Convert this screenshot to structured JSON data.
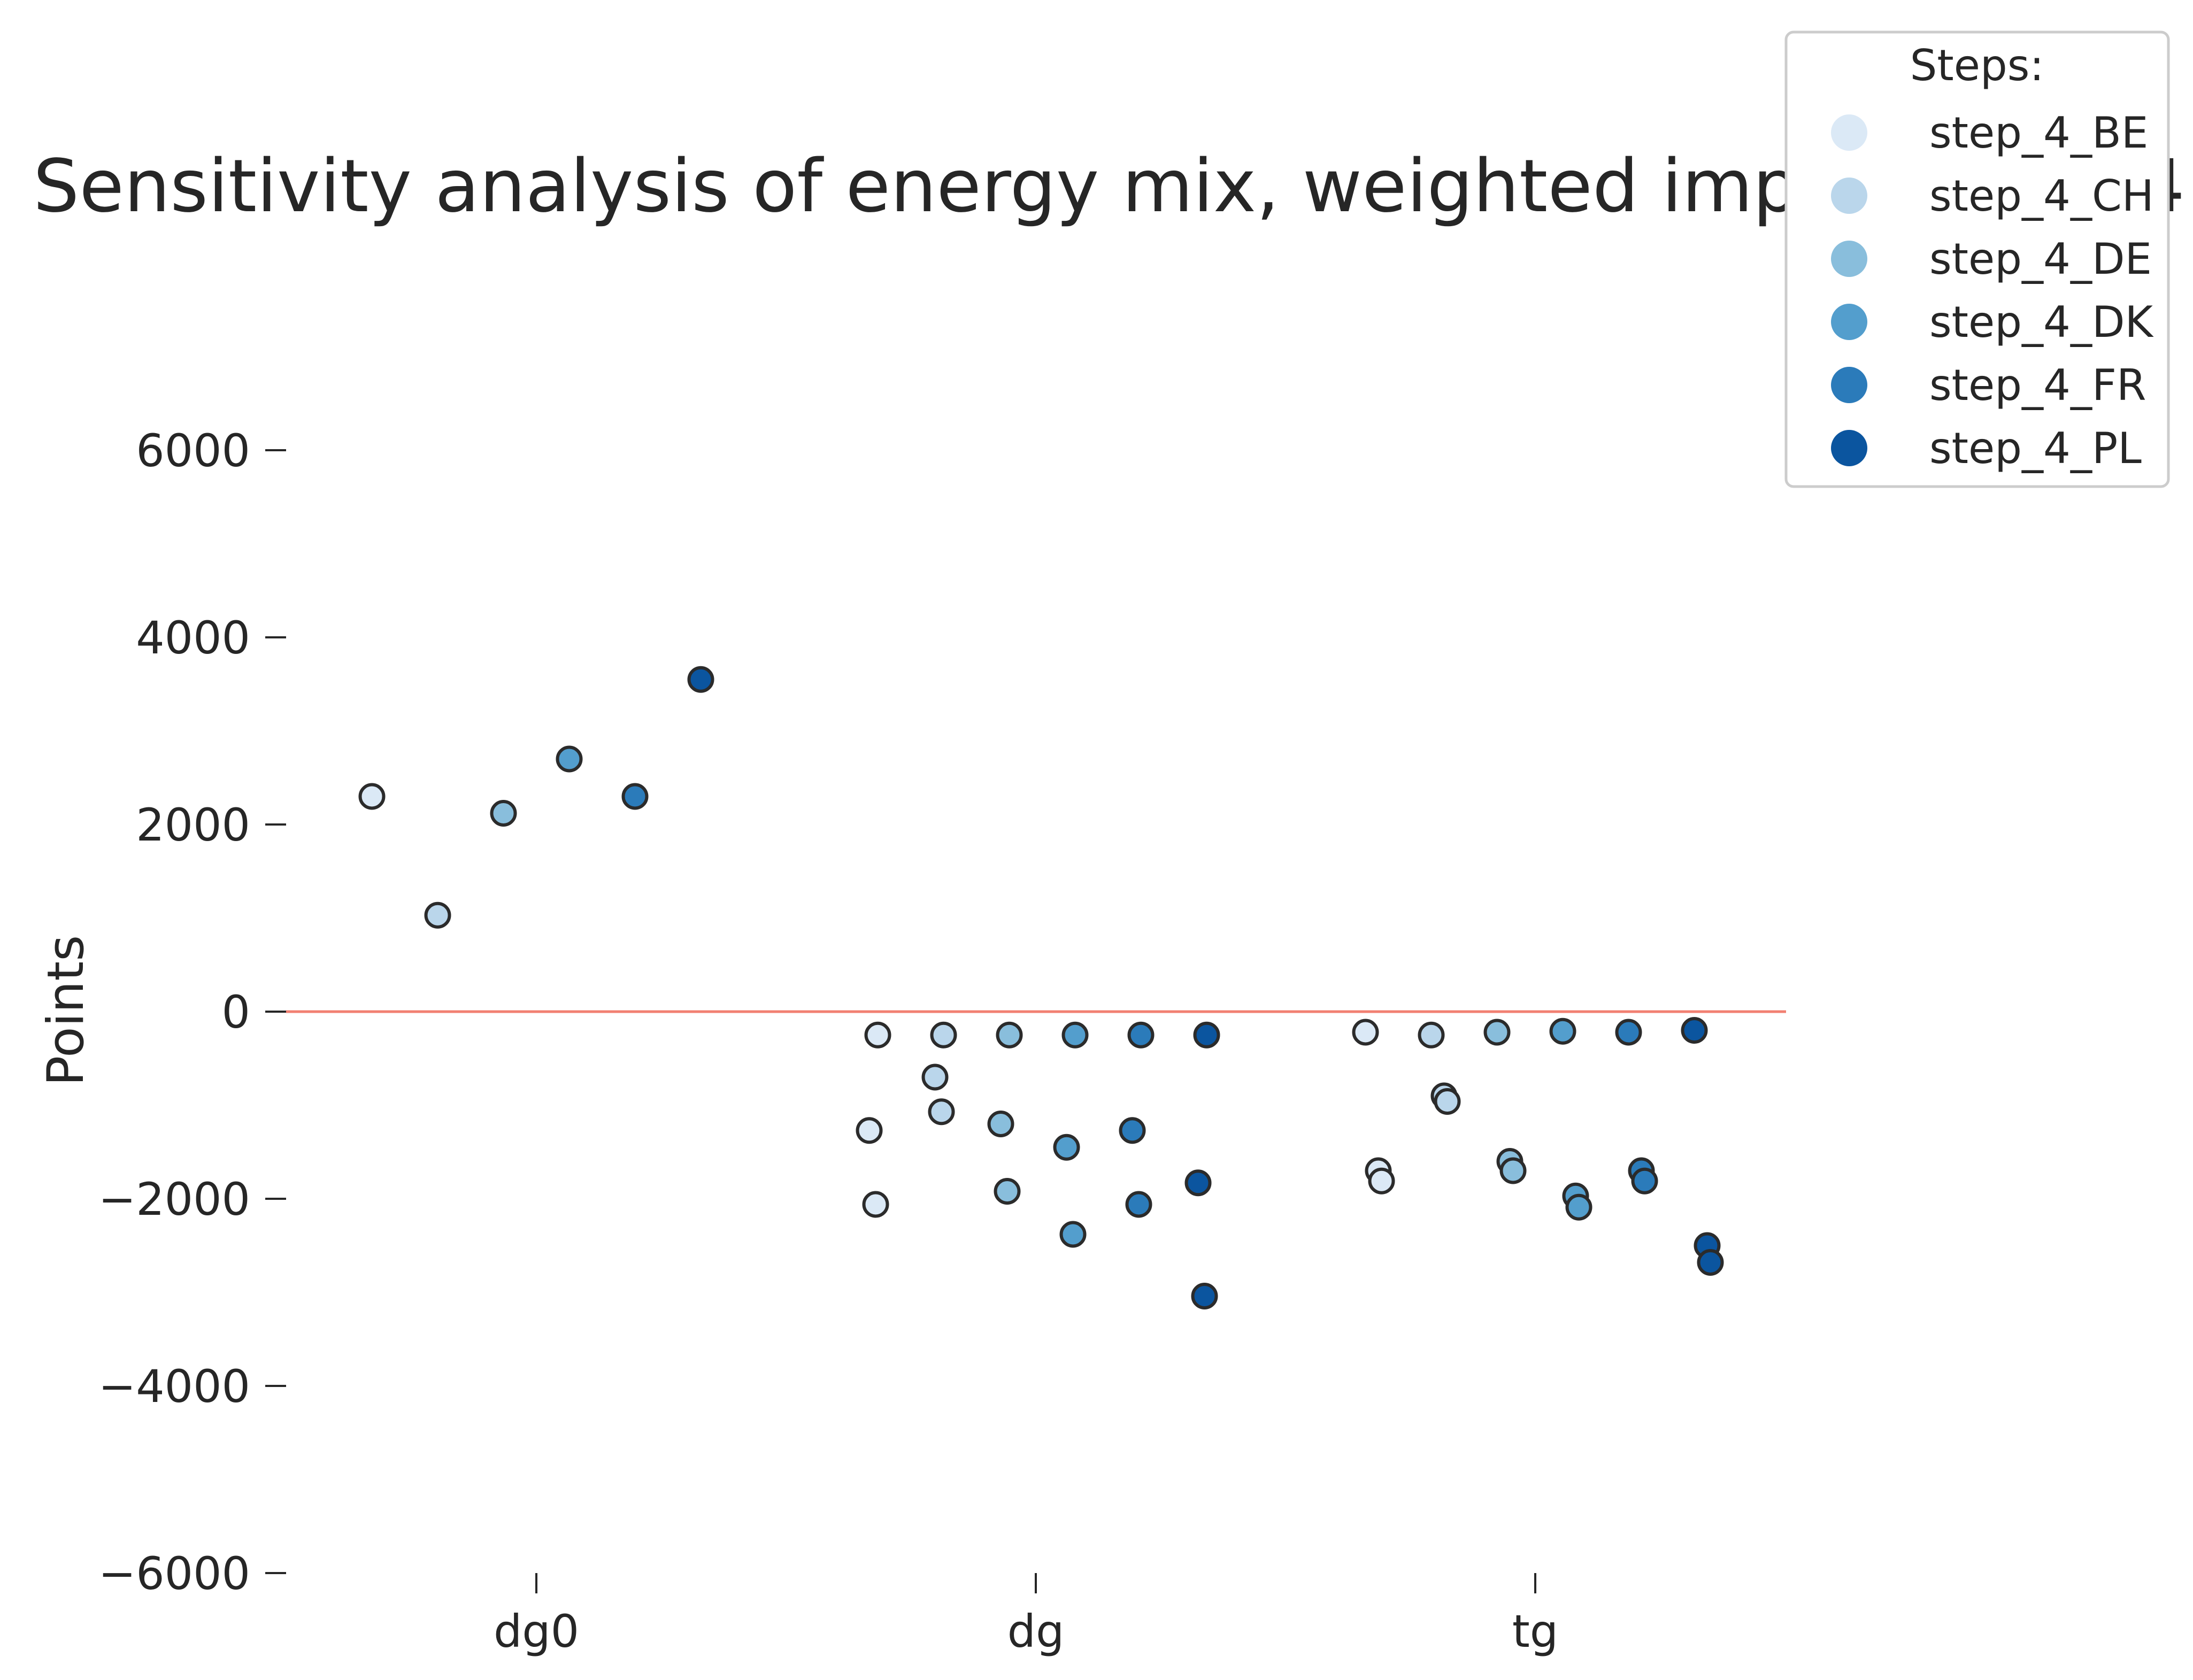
{
  "chart_data": {
    "type": "scatter",
    "title": "Sensitivity analysis of energy mix, weighted impact, step 4",
    "xlabel": "",
    "ylabel": "Points",
    "categories": [
      "dg0",
      "dg",
      "tg"
    ],
    "ylim": [
      -6000,
      6000
    ],
    "yticks": [
      6000,
      4000,
      2000,
      0,
      -2000,
      -4000,
      -6000
    ],
    "ytick_labels": [
      "6000",
      "4000",
      "2000",
      "0",
      "−2000",
      "−4000",
      "−6000"
    ],
    "grid": false,
    "reference_line": {
      "y": 0,
      "color": "#f28072"
    },
    "legend": {
      "title": "Steps:",
      "placement": "top-right"
    },
    "series": [
      {
        "name": "step_4_BE",
        "color": "#dbe9f6",
        "points": [
          {
            "x": "dg0",
            "y": 2300
          },
          {
            "x": "dg",
            "y": -250
          },
          {
            "x": "dg",
            "y": -1270
          },
          {
            "x": "dg",
            "y": -2060
          },
          {
            "x": "tg",
            "y": -220
          },
          {
            "x": "tg",
            "y": -1700
          },
          {
            "x": "tg",
            "y": -1810
          }
        ]
      },
      {
        "name": "step_4_CH",
        "color": "#bad6eb",
        "points": [
          {
            "x": "dg0",
            "y": 1030
          },
          {
            "x": "dg",
            "y": -250
          },
          {
            "x": "dg",
            "y": -700
          },
          {
            "x": "dg",
            "y": -1070
          },
          {
            "x": "tg",
            "y": -250
          },
          {
            "x": "tg",
            "y": -900
          },
          {
            "x": "tg",
            "y": -960
          }
        ]
      },
      {
        "name": "step_4_DE",
        "color": "#89bedc",
        "points": [
          {
            "x": "dg0",
            "y": 2120
          },
          {
            "x": "dg",
            "y": -250
          },
          {
            "x": "dg",
            "y": -1200
          },
          {
            "x": "dg",
            "y": -1920
          },
          {
            "x": "tg",
            "y": -220
          },
          {
            "x": "tg",
            "y": -1600
          },
          {
            "x": "tg",
            "y": -1700
          }
        ]
      },
      {
        "name": "step_4_DK",
        "color": "#539ecd",
        "points": [
          {
            "x": "dg0",
            "y": 2700
          },
          {
            "x": "dg",
            "y": -250
          },
          {
            "x": "dg",
            "y": -1450
          },
          {
            "x": "dg",
            "y": -2380
          },
          {
            "x": "tg",
            "y": -210
          },
          {
            "x": "tg",
            "y": -1970
          },
          {
            "x": "tg",
            "y": -2090
          }
        ]
      },
      {
        "name": "step_4_FR",
        "color": "#2b7bba",
        "points": [
          {
            "x": "dg0",
            "y": 2300
          },
          {
            "x": "dg",
            "y": -250
          },
          {
            "x": "dg",
            "y": -1270
          },
          {
            "x": "dg",
            "y": -2060
          },
          {
            "x": "tg",
            "y": -220
          },
          {
            "x": "tg",
            "y": -1700
          },
          {
            "x": "tg",
            "y": -1810
          }
        ]
      },
      {
        "name": "step_4_PL",
        "color": "#0b559f",
        "points": [
          {
            "x": "dg0",
            "y": 3550
          },
          {
            "x": "dg",
            "y": -250
          },
          {
            "x": "dg",
            "y": -1830
          },
          {
            "x": "dg",
            "y": -3040
          },
          {
            "x": "tg",
            "y": -200
          },
          {
            "x": "tg",
            "y": -2500
          },
          {
            "x": "tg",
            "y": -2680
          }
        ]
      }
    ]
  }
}
